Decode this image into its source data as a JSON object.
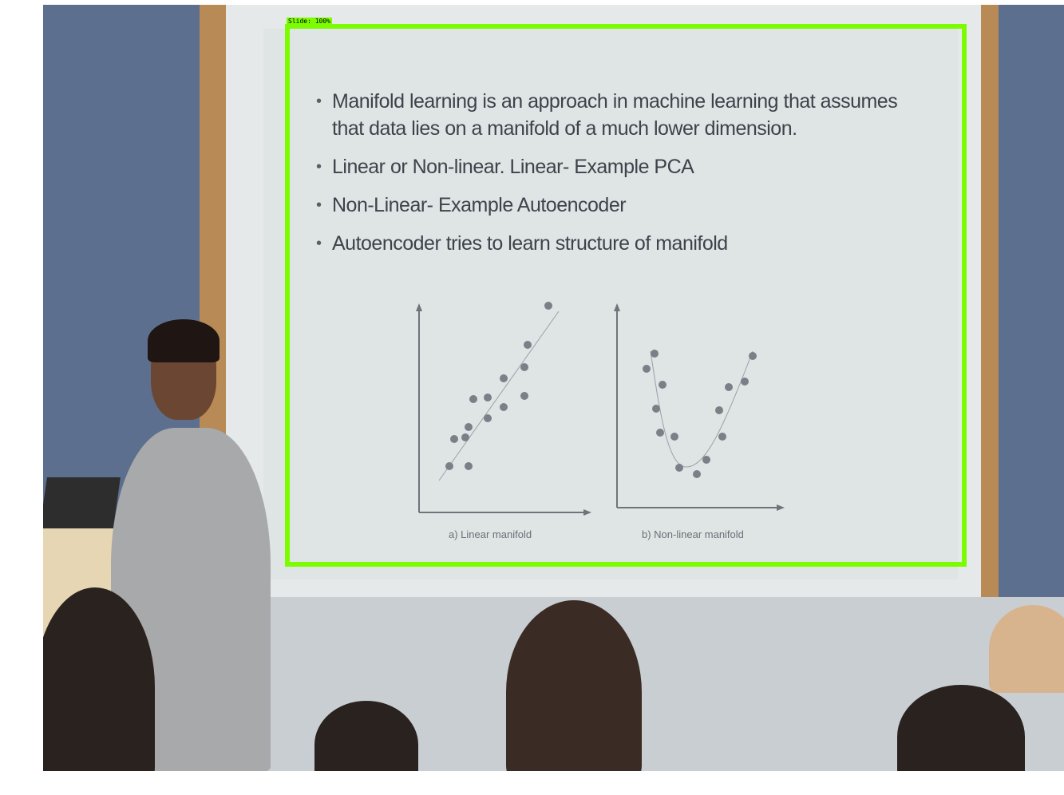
{
  "detection": {
    "label": "Slide: 100%",
    "box_color": "#7cfc00"
  },
  "slide": {
    "bullets": [
      "Manifold learning is an approach in machine learning that assumes that data lies on a manifold of a much lower dimension.",
      "Linear or Non-linear.  Linear- Example PCA",
      "Non-Linear-  Example Autoencoder",
      "Autoencoder tries to learn structure of manifold"
    ],
    "figures": [
      {
        "caption": "a) Linear manifold"
      },
      {
        "caption": "b) Non-linear manifold"
      }
    ]
  }
}
